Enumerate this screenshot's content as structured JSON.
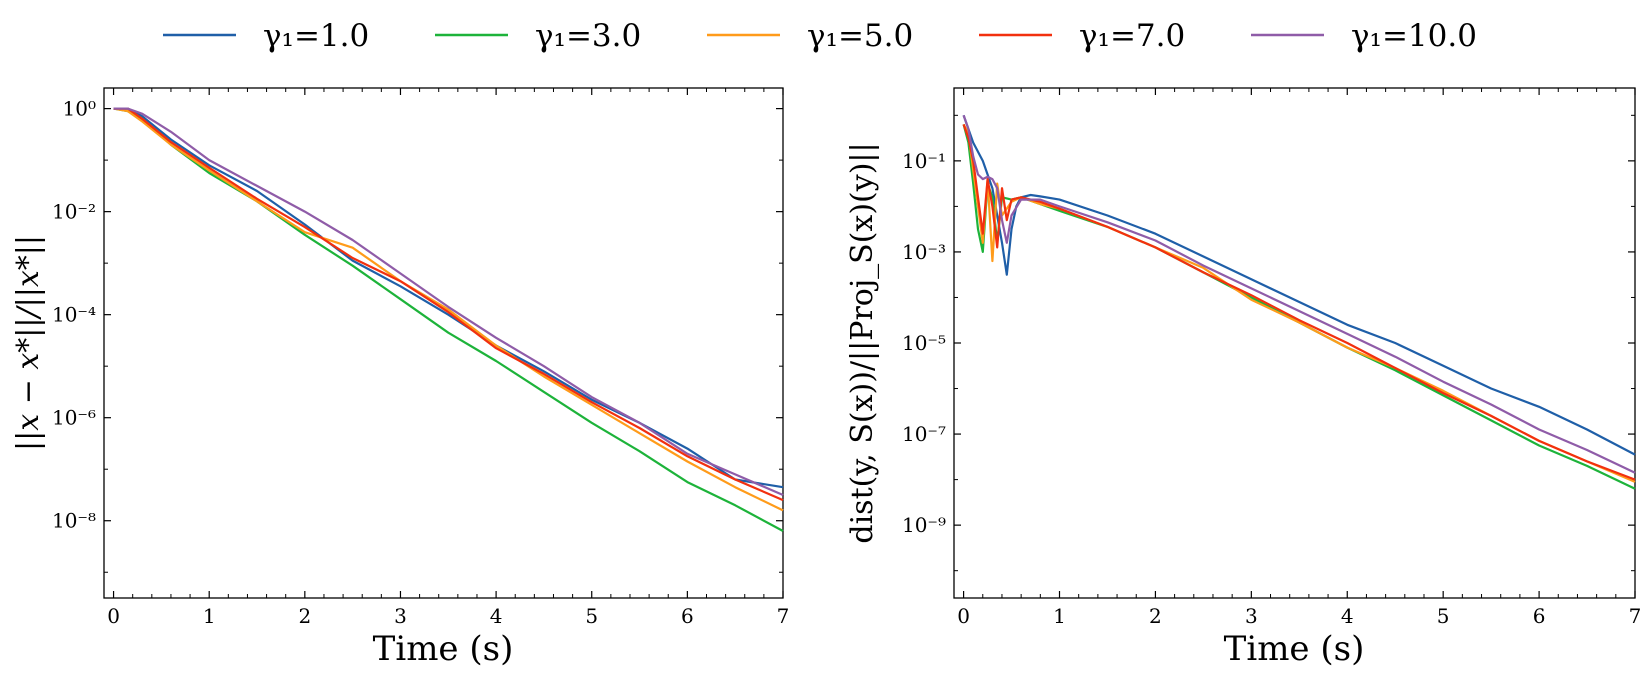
{
  "legend": {
    "items": [
      {
        "label": "γ₁=1.0",
        "color": "#1f5fa8"
      },
      {
        "label": "γ₁=3.0",
        "color": "#1db33a"
      },
      {
        "label": "γ₁=5.0",
        "color": "#ff9b1a"
      },
      {
        "label": "γ₁=7.0",
        "color": "#f2300f"
      },
      {
        "label": "γ₁=10.0",
        "color": "#8f5ca8"
      }
    ]
  },
  "chart_data": [
    {
      "type": "line",
      "title": "",
      "xlabel": "Time (s)",
      "ylabel": "||x − x*||/||x*||",
      "yscale": "log",
      "xlim": [
        -0.1,
        7
      ],
      "ylim_exp": [
        -9.5,
        0.4
      ],
      "xticks": [
        0,
        1,
        2,
        3,
        4,
        5,
        6,
        7
      ],
      "yticks_exp": [
        0,
        -2,
        -4,
        -6,
        -8
      ],
      "ytick_labels": [
        "10⁰",
        "10⁻²",
        "10⁻⁴",
        "10⁻⁶",
        "10⁻⁸"
      ],
      "series": [
        {
          "name": "γ₁=1.0",
          "color": "#1f5fa8",
          "x": [
            0,
            0.15,
            0.3,
            0.6,
            1,
            1.5,
            2,
            2.5,
            3,
            3.5,
            4,
            4.5,
            5,
            5.5,
            6,
            6.5,
            7
          ],
          "y_exp": [
            0,
            0,
            -0.15,
            -0.6,
            -1.1,
            -1.6,
            -2.25,
            -2.95,
            -3.45,
            -4.0,
            -4.6,
            -5.1,
            -5.65,
            -6.1,
            -6.6,
            -7.2,
            -7.35
          ]
        },
        {
          "name": "γ₁=3.0",
          "color": "#1db33a",
          "x": [
            0,
            0.15,
            0.3,
            0.6,
            1,
            1.5,
            2,
            2.5,
            3,
            3.5,
            4,
            4.5,
            5,
            5.5,
            6,
            6.5,
            7
          ],
          "y_exp": [
            0,
            -0.05,
            -0.2,
            -0.7,
            -1.25,
            -1.8,
            -2.45,
            -3.05,
            -3.7,
            -4.35,
            -4.9,
            -5.5,
            -6.1,
            -6.65,
            -7.25,
            -7.7,
            -8.2
          ]
        },
        {
          "name": "γ₁=5.0",
          "color": "#ff9b1a",
          "x": [
            0,
            0.15,
            0.3,
            0.6,
            1,
            1.5,
            2,
            2.5,
            3,
            3.5,
            4,
            4.5,
            5,
            5.5,
            6,
            6.5,
            7
          ],
          "y_exp": [
            0,
            -0.05,
            -0.25,
            -0.7,
            -1.2,
            -1.8,
            -2.4,
            -2.7,
            -3.35,
            -3.9,
            -4.6,
            -5.2,
            -5.75,
            -6.3,
            -6.85,
            -7.35,
            -7.8
          ]
        },
        {
          "name": "γ₁=7.0",
          "color": "#f2300f",
          "x": [
            0,
            0.15,
            0.3,
            0.6,
            1,
            1.5,
            2,
            2.5,
            3,
            3.5,
            4,
            4.5,
            5,
            5.5,
            6,
            6.5,
            7
          ],
          "y_exp": [
            0,
            0,
            -0.2,
            -0.65,
            -1.15,
            -1.75,
            -2.3,
            -2.9,
            -3.35,
            -3.95,
            -4.65,
            -5.15,
            -5.7,
            -6.2,
            -6.75,
            -7.2,
            -7.6
          ]
        },
        {
          "name": "γ₁=10.0",
          "color": "#8f5ca8",
          "x": [
            0,
            0.15,
            0.3,
            0.6,
            1,
            1.5,
            2,
            2.5,
            3,
            3.5,
            4,
            4.5,
            5,
            5.5,
            6,
            6.5,
            7
          ],
          "y_exp": [
            0,
            0,
            -0.1,
            -0.45,
            -1.0,
            -1.5,
            -2.0,
            -2.55,
            -3.2,
            -3.85,
            -4.45,
            -5.0,
            -5.6,
            -6.1,
            -6.7,
            -7.1,
            -7.5
          ]
        }
      ]
    },
    {
      "type": "line",
      "title": "",
      "xlabel": "Time (s)",
      "ylabel": "dist(y, S(x))/||Proj_S(x)(y)||",
      "yscale": "log",
      "xlim": [
        -0.1,
        7
      ],
      "ylim_exp": [
        -10.6,
        0.6
      ],
      "xticks": [
        0,
        1,
        2,
        3,
        4,
        5,
        6,
        7
      ],
      "yticks_exp": [
        -1,
        -3,
        -5,
        -7,
        -9
      ],
      "ytick_labels": [
        "10⁻¹",
        "10⁻³",
        "10⁻⁵",
        "10⁻⁷",
        "10⁻⁹"
      ],
      "series": [
        {
          "name": "γ₁=1.0",
          "color": "#1f5fa8",
          "x": [
            0,
            0.1,
            0.2,
            0.3,
            0.35,
            0.4,
            0.45,
            0.5,
            0.55,
            0.6,
            0.7,
            0.8,
            1,
            1.5,
            2,
            2.5,
            3,
            3.5,
            4,
            4.5,
            5,
            5.5,
            6,
            6.5,
            7
          ],
          "y_exp": [
            0,
            -0.6,
            -1.0,
            -1.6,
            -2.2,
            -2.8,
            -3.5,
            -2.5,
            -2.0,
            -1.8,
            -1.75,
            -1.78,
            -1.85,
            -2.2,
            -2.6,
            -3.1,
            -3.6,
            -4.1,
            -4.6,
            -5.0,
            -5.5,
            -6.0,
            -6.4,
            -6.9,
            -7.45
          ]
        },
        {
          "name": "γ₁=3.0",
          "color": "#1db33a",
          "x": [
            0,
            0.05,
            0.1,
            0.15,
            0.2,
            0.25,
            0.3,
            0.35,
            0.4,
            0.5,
            0.6,
            0.8,
            1,
            1.5,
            2,
            2.5,
            3,
            3.5,
            4,
            4.5,
            5,
            5.5,
            6,
            6.5,
            7
          ],
          "y_exp": [
            -0.2,
            -0.6,
            -1.5,
            -2.5,
            -3.0,
            -1.5,
            -1.8,
            -2.8,
            -1.8,
            -1.85,
            -1.8,
            -1.95,
            -2.1,
            -2.45,
            -2.9,
            -3.45,
            -4.0,
            -4.55,
            -5.1,
            -5.6,
            -6.15,
            -6.7,
            -7.25,
            -7.7,
            -8.2
          ]
        },
        {
          "name": "γ₁=5.0",
          "color": "#ff9b1a",
          "x": [
            0,
            0.05,
            0.1,
            0.15,
            0.2,
            0.25,
            0.3,
            0.35,
            0.4,
            0.5,
            0.6,
            0.8,
            1,
            1.5,
            2,
            2.5,
            3,
            3.5,
            4,
            4.5,
            5,
            5.5,
            6,
            6.5,
            7
          ],
          "y_exp": [
            -0.2,
            -0.4,
            -1.2,
            -2.0,
            -2.8,
            -1.4,
            -3.2,
            -1.5,
            -2.2,
            -1.9,
            -1.8,
            -1.95,
            -2.05,
            -2.45,
            -2.9,
            -3.35,
            -4.05,
            -4.55,
            -5.1,
            -5.55,
            -6.05,
            -6.6,
            -7.15,
            -7.6,
            -8.05
          ]
        },
        {
          "name": "γ₁=7.0",
          "color": "#f2300f",
          "x": [
            0,
            0.05,
            0.1,
            0.15,
            0.2,
            0.25,
            0.3,
            0.35,
            0.4,
            0.45,
            0.5,
            0.6,
            0.8,
            1,
            1.5,
            2,
            2.5,
            3,
            3.5,
            4,
            4.5,
            5,
            5.5,
            6,
            6.5,
            7
          ],
          "y_exp": [
            -0.2,
            -0.5,
            -1.0,
            -1.8,
            -2.6,
            -1.4,
            -2.0,
            -2.9,
            -1.6,
            -2.3,
            -1.85,
            -1.8,
            -1.9,
            -2.05,
            -2.45,
            -2.9,
            -3.45,
            -3.95,
            -4.5,
            -5.0,
            -5.55,
            -6.1,
            -6.6,
            -7.15,
            -7.6,
            -8.0
          ]
        },
        {
          "name": "γ₁=10.0",
          "color": "#8f5ca8",
          "x": [
            0,
            0.05,
            0.1,
            0.15,
            0.2,
            0.25,
            0.3,
            0.35,
            0.4,
            0.45,
            0.5,
            0.6,
            0.8,
            1,
            1.5,
            2,
            2.5,
            3,
            3.5,
            4,
            4.5,
            5,
            5.5,
            6,
            6.5,
            7
          ],
          "y_exp": [
            0,
            -0.3,
            -0.9,
            -1.3,
            -1.4,
            -1.35,
            -1.4,
            -1.6,
            -2.3,
            -2.8,
            -2.2,
            -1.85,
            -1.85,
            -2.0,
            -2.35,
            -2.75,
            -3.3,
            -3.8,
            -4.3,
            -4.8,
            -5.3,
            -5.85,
            -6.35,
            -6.9,
            -7.35,
            -7.85
          ]
        }
      ]
    }
  ]
}
